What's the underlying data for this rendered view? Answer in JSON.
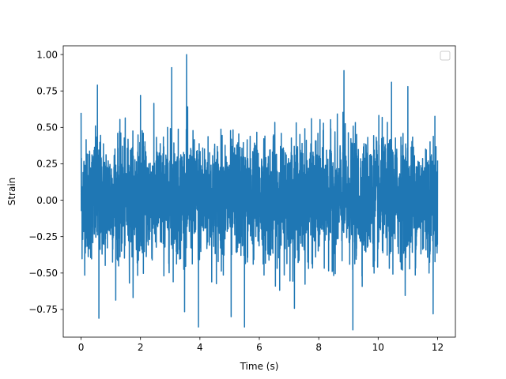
{
  "chart_data": {
    "type": "line",
    "title": "",
    "xlabel": "Time (s)",
    "ylabel": "Strain",
    "xlim": [
      -0.6,
      12.6
    ],
    "ylim": [
      -0.94,
      1.06
    ],
    "x_ticks": [
      0,
      2,
      4,
      6,
      8,
      10,
      12
    ],
    "x_tick_labels": [
      "0",
      "2",
      "4",
      "6",
      "8",
      "10",
      "12"
    ],
    "y_ticks": [
      -0.75,
      -0.5,
      -0.25,
      0.0,
      0.25,
      0.5,
      0.75,
      1.0
    ],
    "y_tick_labels": [
      "−0.75",
      "−0.50",
      "−0.25",
      "0.00",
      "0.25",
      "0.50",
      "0.75",
      "1.00"
    ],
    "grid": false,
    "legend": {
      "position": "top-right",
      "entries": []
    },
    "series": [
      {
        "color": "#1f77b4",
        "x_range": [
          0,
          12
        ],
        "y_min": -0.89,
        "y_max": 1.0,
        "peaks": [
          {
            "x": 0.0,
            "y": 0.6
          },
          {
            "x": 0.55,
            "y": 0.79
          },
          {
            "x": 0.6,
            "y": -0.81
          },
          {
            "x": 2.0,
            "y": 0.72
          },
          {
            "x": 3.05,
            "y": 0.91
          },
          {
            "x": 3.55,
            "y": 1.0
          },
          {
            "x": 3.95,
            "y": -0.87
          },
          {
            "x": 5.5,
            "y": -0.87
          },
          {
            "x": 5.05,
            "y": -0.8
          },
          {
            "x": 8.85,
            "y": 0.89
          },
          {
            "x": 9.15,
            "y": -0.89
          },
          {
            "x": 10.45,
            "y": 0.81
          },
          {
            "x": 11.0,
            "y": 0.78
          },
          {
            "x": 11.85,
            "y": -0.78
          }
        ]
      }
    ]
  }
}
